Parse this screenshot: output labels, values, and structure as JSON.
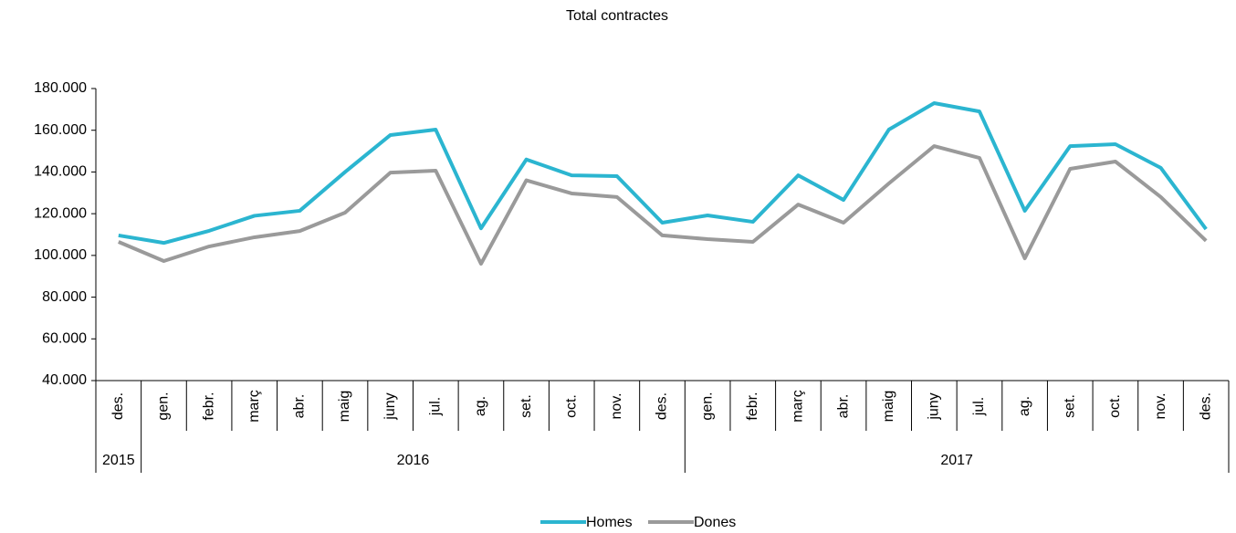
{
  "chart_data": {
    "type": "line",
    "title": "Total contractes",
    "categories": [
      "des.",
      "gen.",
      "febr.",
      "març",
      "abr.",
      "maig",
      "juny",
      "jul.",
      "ag.",
      "set.",
      "oct.",
      "nov.",
      "des.",
      "gen.",
      "febr.",
      "març",
      "abr.",
      "maig",
      "juny",
      "jul.",
      "ag.",
      "set.",
      "oct.",
      "nov.",
      "des."
    ],
    "category_groups": [
      {
        "label": "2015",
        "span": 1
      },
      {
        "label": "2016",
        "span": 12
      },
      {
        "label": "2017",
        "span": 12
      }
    ],
    "series": [
      {
        "name": "Homes",
        "color": "#2bb5d0",
        "values": [
          109600,
          106000,
          111800,
          119000,
          121400,
          140000,
          157700,
          160300,
          113000,
          146000,
          138400,
          138000,
          115700,
          119200,
          116100,
          138400,
          126600,
          160300,
          173000,
          169000,
          121400,
          152400,
          153300,
          142000,
          112600
        ]
      },
      {
        "name": "Dones",
        "color": "#9a9a9a",
        "values": [
          106500,
          97300,
          104300,
          108700,
          111700,
          120500,
          139700,
          140600,
          96000,
          136000,
          129700,
          128000,
          109600,
          107800,
          106500,
          124400,
          115700,
          134500,
          152400,
          146700,
          98600,
          141500,
          145000,
          128000,
          107000
        ]
      }
    ],
    "ylim": [
      40000,
      180000
    ],
    "yticks": [
      {
        "value": 40000,
        "label": "40.000"
      },
      {
        "value": 60000,
        "label": "60.000"
      },
      {
        "value": 80000,
        "label": "80.000"
      },
      {
        "value": 100000,
        "label": "100.000"
      },
      {
        "value": 120000,
        "label": "120.000"
      },
      {
        "value": 140000,
        "label": "140.000"
      },
      {
        "value": 160000,
        "label": "160.000"
      },
      {
        "value": 180000,
        "label": "180.000"
      }
    ],
    "grid": false,
    "legend": "bottom"
  }
}
